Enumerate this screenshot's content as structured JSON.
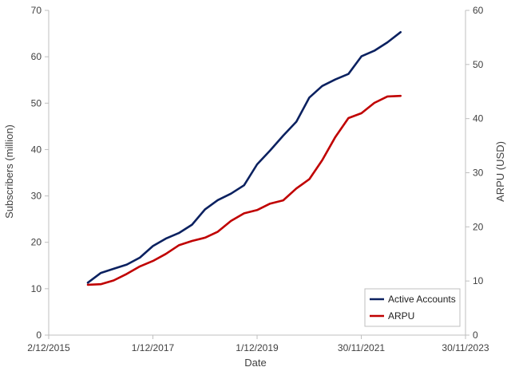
{
  "chart_data": {
    "type": "line",
    "title": "",
    "xlabel": "Date",
    "ylabel_left": "Subscribers (million)",
    "ylabel_right": "ARPU (USD)",
    "x_ticks": [
      "2/12/2015",
      "1/12/2017",
      "1/12/2019",
      "30/11/2021",
      "30/11/2023"
    ],
    "xlim": [
      "2015-12-02",
      "2023-11-30"
    ],
    "ylim_left": [
      0,
      70
    ],
    "yticks_left": [
      0,
      10,
      20,
      30,
      40,
      50,
      60,
      70
    ],
    "ylim_right": [
      0,
      60
    ],
    "yticks_right": [
      0,
      10,
      20,
      30,
      40,
      50,
      60
    ],
    "legend_position": "bottom-right",
    "grid": false,
    "series": [
      {
        "name": "Active Accounts",
        "axis": "left",
        "color": "#0b2160",
        "points": [
          [
            "2016-09-01",
            11.3
          ],
          [
            "2016-12-01",
            13.4
          ],
          [
            "2017-03-01",
            14.3
          ],
          [
            "2017-06-01",
            15.2
          ],
          [
            "2017-09-01",
            16.7
          ],
          [
            "2017-12-01",
            19.2
          ],
          [
            "2018-03-01",
            20.8
          ],
          [
            "2018-06-01",
            22.0
          ],
          [
            "2018-09-01",
            23.8
          ],
          [
            "2018-12-01",
            27.1
          ],
          [
            "2019-03-01",
            29.1
          ],
          [
            "2019-06-01",
            30.5
          ],
          [
            "2019-09-01",
            32.3
          ],
          [
            "2019-12-01",
            36.8
          ],
          [
            "2020-03-01",
            39.8
          ],
          [
            "2020-06-01",
            43.0
          ],
          [
            "2020-09-01",
            46.0
          ],
          [
            "2020-12-01",
            51.2
          ],
          [
            "2021-03-01",
            53.7
          ],
          [
            "2021-06-01",
            55.1
          ],
          [
            "2021-09-01",
            56.3
          ],
          [
            "2021-12-01",
            60.1
          ],
          [
            "2022-03-01",
            61.3
          ],
          [
            "2022-06-01",
            63.1
          ],
          [
            "2022-09-01",
            65.3
          ]
        ]
      },
      {
        "name": "ARPU",
        "axis": "right",
        "color": "#c00000",
        "points": [
          [
            "2016-09-01",
            9.3
          ],
          [
            "2016-12-01",
            9.4
          ],
          [
            "2017-03-01",
            10.1
          ],
          [
            "2017-06-01",
            11.3
          ],
          [
            "2017-09-01",
            12.7
          ],
          [
            "2017-12-01",
            13.7
          ],
          [
            "2018-03-01",
            15.0
          ],
          [
            "2018-06-01",
            16.6
          ],
          [
            "2018-09-01",
            17.4
          ],
          [
            "2018-12-01",
            18.0
          ],
          [
            "2019-03-01",
            19.1
          ],
          [
            "2019-06-01",
            21.1
          ],
          [
            "2019-09-01",
            22.5
          ],
          [
            "2019-12-01",
            23.1
          ],
          [
            "2020-03-01",
            24.3
          ],
          [
            "2020-06-01",
            24.9
          ],
          [
            "2020-09-01",
            27.1
          ],
          [
            "2020-12-01",
            28.8
          ],
          [
            "2021-03-01",
            32.3
          ],
          [
            "2021-06-01",
            36.6
          ],
          [
            "2021-09-01",
            40.1
          ],
          [
            "2021-12-01",
            41.0
          ],
          [
            "2022-03-01",
            42.9
          ],
          [
            "2022-06-01",
            44.1
          ],
          [
            "2022-09-01",
            44.2
          ]
        ]
      }
    ]
  }
}
